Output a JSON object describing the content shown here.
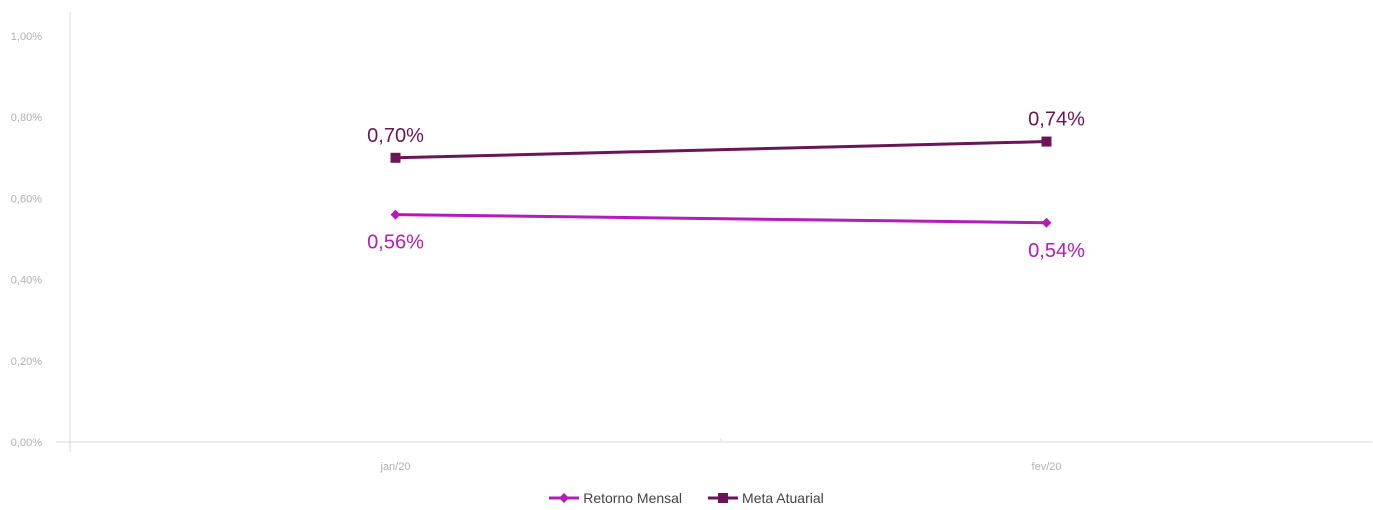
{
  "chart_data": {
    "type": "line",
    "categories": [
      "jan/20",
      "fev/20"
    ],
    "series": [
      {
        "name": "Retorno Mensal",
        "values": [
          0.56,
          0.54
        ],
        "labels": [
          "0,56%",
          "0,54%"
        ],
        "color": "#b21cb8",
        "marker": "diamond"
      },
      {
        "name": "Meta Atuarial",
        "values": [
          0.7,
          0.74
        ],
        "labels": [
          "0,70%",
          "0,74%"
        ],
        "color": "#6b1557",
        "marker": "square"
      }
    ],
    "yticks": [
      "0,00%",
      "0,20%",
      "0,40%",
      "0,60%",
      "0,80%",
      "1,00%"
    ],
    "ylim": [
      0,
      1.0
    ],
    "grid": false,
    "legend_position": "bottom"
  }
}
